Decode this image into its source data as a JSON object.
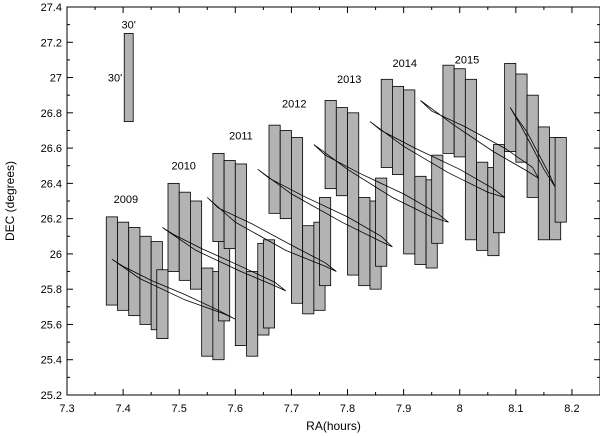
{
  "chart_data": {
    "type": "scatter",
    "xlabel": "RA(hours)",
    "ylabel": "DEC (degrees)",
    "xlim": [
      7.3,
      8.25
    ],
    "ylim": [
      25.2,
      27.4
    ],
    "xticks": [
      "7.3",
      "7.4",
      "7.5",
      "7.6",
      "7.7",
      "7.8",
      "7.9",
      "8",
      "8.1",
      "8.2"
    ],
    "yticks": [
      "25.2",
      "25.4",
      "25.6",
      "25.8",
      "26",
      "26.2",
      "26.4",
      "26.6",
      "26.8",
      "27",
      "27.2",
      "27.4"
    ],
    "scale_box": {
      "ra_center": 7.41,
      "dec_min": 26.75,
      "dec_max": 27.25,
      "labels": [
        "30'",
        "30'"
      ]
    },
    "fields": [
      {
        "year": "2009",
        "stacks": [
          [
            7.37,
            7.39,
            25.71,
            26.21
          ],
          [
            7.39,
            7.41,
            25.68,
            26.18
          ],
          [
            7.41,
            7.43,
            25.65,
            26.15
          ],
          [
            7.43,
            7.45,
            25.6,
            26.1
          ],
          [
            7.45,
            7.47,
            25.57,
            26.07
          ],
          [
            7.46,
            7.48,
            25.52,
            25.91
          ]
        ]
      },
      {
        "year": "2010",
        "stacks": [
          [
            7.48,
            7.5,
            25.9,
            26.4
          ],
          [
            7.5,
            7.52,
            25.85,
            26.35
          ],
          [
            7.52,
            7.54,
            25.8,
            26.3
          ],
          [
            7.54,
            7.56,
            25.42,
            25.92
          ],
          [
            7.56,
            7.58,
            25.4,
            25.9
          ],
          [
            7.57,
            7.59,
            25.62,
            26.12
          ]
        ]
      },
      {
        "year": "2011",
        "stacks": [
          [
            7.56,
            7.58,
            26.07,
            26.57
          ],
          [
            7.58,
            7.6,
            26.03,
            26.53
          ],
          [
            7.6,
            7.62,
            25.48,
            26.51
          ],
          [
            7.62,
            7.64,
            25.42,
            25.9
          ],
          [
            7.64,
            7.66,
            25.54,
            26.06
          ],
          [
            7.65,
            7.67,
            25.58,
            26.08
          ]
        ]
      },
      {
        "year": "2012",
        "stacks": [
          [
            7.66,
            7.68,
            26.23,
            26.73
          ],
          [
            7.68,
            7.7,
            26.2,
            26.7
          ],
          [
            7.7,
            7.72,
            25.72,
            26.66
          ],
          [
            7.72,
            7.74,
            25.66,
            26.16
          ],
          [
            7.74,
            7.76,
            25.68,
            26.18
          ],
          [
            7.75,
            7.77,
            25.82,
            26.32
          ]
        ]
      },
      {
        "year": "2013",
        "stacks": [
          [
            7.76,
            7.78,
            26.37,
            26.87
          ],
          [
            7.78,
            7.8,
            26.33,
            26.83
          ],
          [
            7.8,
            7.82,
            25.88,
            26.8
          ],
          [
            7.82,
            7.84,
            25.82,
            26.32
          ],
          [
            7.84,
            7.86,
            25.8,
            26.3
          ],
          [
            7.85,
            7.87,
            25.93,
            26.43
          ]
        ]
      },
      {
        "year": "2014",
        "stacks": [
          [
            7.86,
            7.88,
            26.49,
            26.99
          ],
          [
            7.88,
            7.9,
            26.45,
            26.95
          ],
          [
            7.9,
            7.92,
            26.0,
            26.93
          ],
          [
            7.92,
            7.94,
            25.94,
            26.44
          ],
          [
            7.94,
            7.96,
            25.92,
            26.42
          ],
          [
            7.95,
            7.97,
            26.06,
            26.56
          ]
        ]
      },
      {
        "year": "2015",
        "stacks": [
          [
            7.97,
            7.99,
            26.57,
            27.07
          ],
          [
            7.99,
            8.01,
            26.55,
            27.05
          ],
          [
            8.01,
            8.03,
            26.08,
            26.99
          ],
          [
            8.03,
            8.05,
            26.02,
            26.52
          ],
          [
            8.05,
            8.07,
            25.99,
            26.49
          ],
          [
            8.06,
            8.08,
            26.12,
            26.62
          ]
        ]
      },
      {
        "year": "",
        "stacks": [
          [
            8.08,
            8.1,
            26.58,
            27.08
          ],
          [
            8.1,
            8.12,
            26.52,
            27.02
          ],
          [
            8.12,
            8.14,
            26.32,
            26.9
          ],
          [
            8.14,
            8.16,
            26.08,
            26.72
          ],
          [
            8.16,
            8.18,
            26.08,
            26.66
          ],
          [
            8.17,
            8.19,
            26.18,
            26.66
          ]
        ]
      }
    ],
    "years": [
      {
        "label": "2009",
        "ra": 7.405,
        "dec": 26.29
      },
      {
        "label": "2010",
        "ra": 7.508,
        "dec": 26.48
      },
      {
        "label": "2011",
        "ra": 7.61,
        "dec": 26.65
      },
      {
        "label": "2012",
        "ra": 7.705,
        "dec": 26.83
      },
      {
        "label": "2013",
        "ra": 7.803,
        "dec": 26.97
      },
      {
        "label": "2014",
        "ra": 7.902,
        "dec": 27.06
      },
      {
        "label": "2015",
        "ra": 8.013,
        "dec": 27.08
      }
    ],
    "ellipses": [
      {
        "path": [
          [
            7.38,
            25.97
          ],
          [
            7.43,
            25.86
          ],
          [
            7.51,
            25.74
          ],
          [
            7.58,
            25.66
          ],
          [
            7.6,
            25.63
          ],
          [
            7.57,
            25.68
          ],
          [
            7.51,
            25.77
          ],
          [
            7.45,
            25.85
          ],
          [
            7.4,
            25.93
          ],
          [
            7.38,
            25.97
          ]
        ]
      },
      {
        "path": [
          [
            7.47,
            26.15
          ],
          [
            7.53,
            26.02
          ],
          [
            7.61,
            25.9
          ],
          [
            7.67,
            25.82
          ],
          [
            7.69,
            25.79
          ],
          [
            7.67,
            25.84
          ],
          [
            7.61,
            25.93
          ],
          [
            7.54,
            26.03
          ],
          [
            7.49,
            26.11
          ],
          [
            7.47,
            26.15
          ]
        ]
      },
      {
        "path": [
          [
            7.55,
            26.32
          ],
          [
            7.6,
            26.18
          ],
          [
            7.69,
            26.02
          ],
          [
            7.76,
            25.93
          ],
          [
            7.78,
            25.9
          ],
          [
            7.76,
            25.95
          ],
          [
            7.7,
            26.05
          ],
          [
            7.63,
            26.17
          ],
          [
            7.57,
            26.26
          ],
          [
            7.55,
            26.32
          ]
        ]
      },
      {
        "path": [
          [
            7.64,
            26.48
          ],
          [
            7.7,
            26.34
          ],
          [
            7.79,
            26.18
          ],
          [
            7.86,
            26.07
          ],
          [
            7.88,
            26.04
          ],
          [
            7.86,
            26.1
          ],
          [
            7.8,
            26.21
          ],
          [
            7.72,
            26.33
          ],
          [
            7.66,
            26.43
          ],
          [
            7.64,
            26.48
          ]
        ]
      },
      {
        "path": [
          [
            7.74,
            26.62
          ],
          [
            7.8,
            26.48
          ],
          [
            7.88,
            26.32
          ],
          [
            7.95,
            26.21
          ],
          [
            7.98,
            26.18
          ],
          [
            7.96,
            26.23
          ],
          [
            7.9,
            26.34
          ],
          [
            7.82,
            26.46
          ],
          [
            7.76,
            26.56
          ],
          [
            7.74,
            26.62
          ]
        ]
      },
      {
        "path": [
          [
            7.84,
            26.75
          ],
          [
            7.9,
            26.61
          ],
          [
            7.98,
            26.46
          ],
          [
            8.05,
            26.35
          ],
          [
            8.08,
            26.32
          ],
          [
            8.06,
            26.37
          ],
          [
            8.0,
            26.48
          ],
          [
            7.92,
            26.6
          ],
          [
            7.86,
            26.7
          ],
          [
            7.84,
            26.75
          ]
        ]
      },
      {
        "path": [
          [
            7.93,
            26.87
          ],
          [
            7.99,
            26.73
          ],
          [
            8.06,
            26.58
          ],
          [
            8.12,
            26.47
          ],
          [
            8.14,
            26.43
          ],
          [
            8.13,
            26.49
          ],
          [
            8.08,
            26.6
          ],
          [
            8.01,
            26.72
          ],
          [
            7.95,
            26.81
          ],
          [
            7.93,
            26.87
          ]
        ]
      },
      {
        "path": [
          [
            8.09,
            26.83
          ],
          [
            8.11,
            26.72
          ],
          [
            8.13,
            26.6
          ],
          [
            8.15,
            26.48
          ],
          [
            8.17,
            26.38
          ],
          [
            8.16,
            26.45
          ],
          [
            8.14,
            26.57
          ],
          [
            8.12,
            26.69
          ],
          [
            8.1,
            26.78
          ],
          [
            8.09,
            26.83
          ]
        ]
      }
    ]
  }
}
